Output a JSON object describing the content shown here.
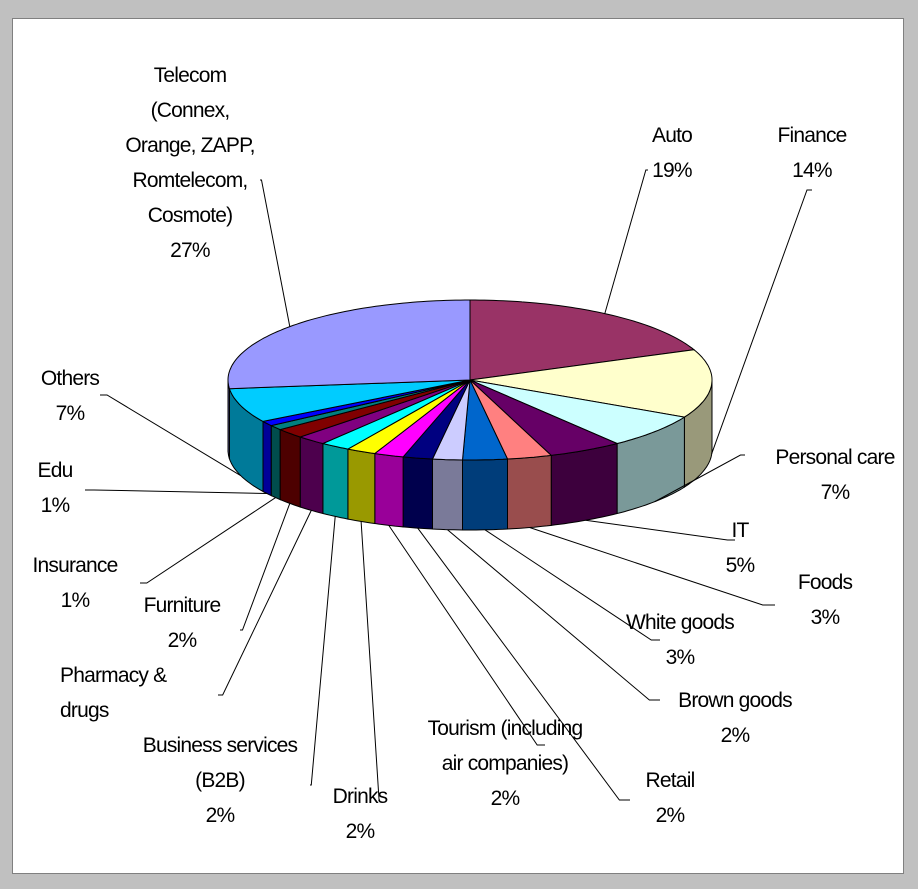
{
  "chart_data": {
    "type": "pie3d",
    "categories": [
      "Auto",
      "Finance",
      "Personal care",
      "IT",
      "Foods",
      "White goods",
      "Brown goods",
      "Retail",
      "Tourism (including air companies)",
      "Drinks",
      "Business services (B2B)",
      "Pharmacy & drugs",
      "Furniture",
      "Insurance",
      "Edu",
      "Others",
      "Telecom (Connex, Orange, ZAPP, Romtelecom, Cosmote)"
    ],
    "values": [
      19,
      14,
      7,
      5,
      3,
      3,
      2,
      2,
      2,
      2,
      2,
      2,
      2,
      1,
      1,
      7,
      27
    ],
    "value_labels": [
      "19%",
      "14%",
      "7%",
      "5%",
      "3%",
      "3%",
      "2%",
      "2%",
      "2%",
      "2%",
      "2%",
      null,
      "2%",
      "1%",
      "1%",
      "7%",
      "27%"
    ],
    "colors": [
      "#993366",
      "#FFFFCC",
      "#CCFFFF",
      "#660066",
      "#FF8080",
      "#0066CC",
      "#CCCCFF",
      "#000080",
      "#FF00FF",
      "#FFFF00",
      "#00FFFF",
      "#800080",
      "#800000",
      "#008080",
      "#0000FF",
      "#00CCFF",
      "#9999FF"
    ]
  }
}
